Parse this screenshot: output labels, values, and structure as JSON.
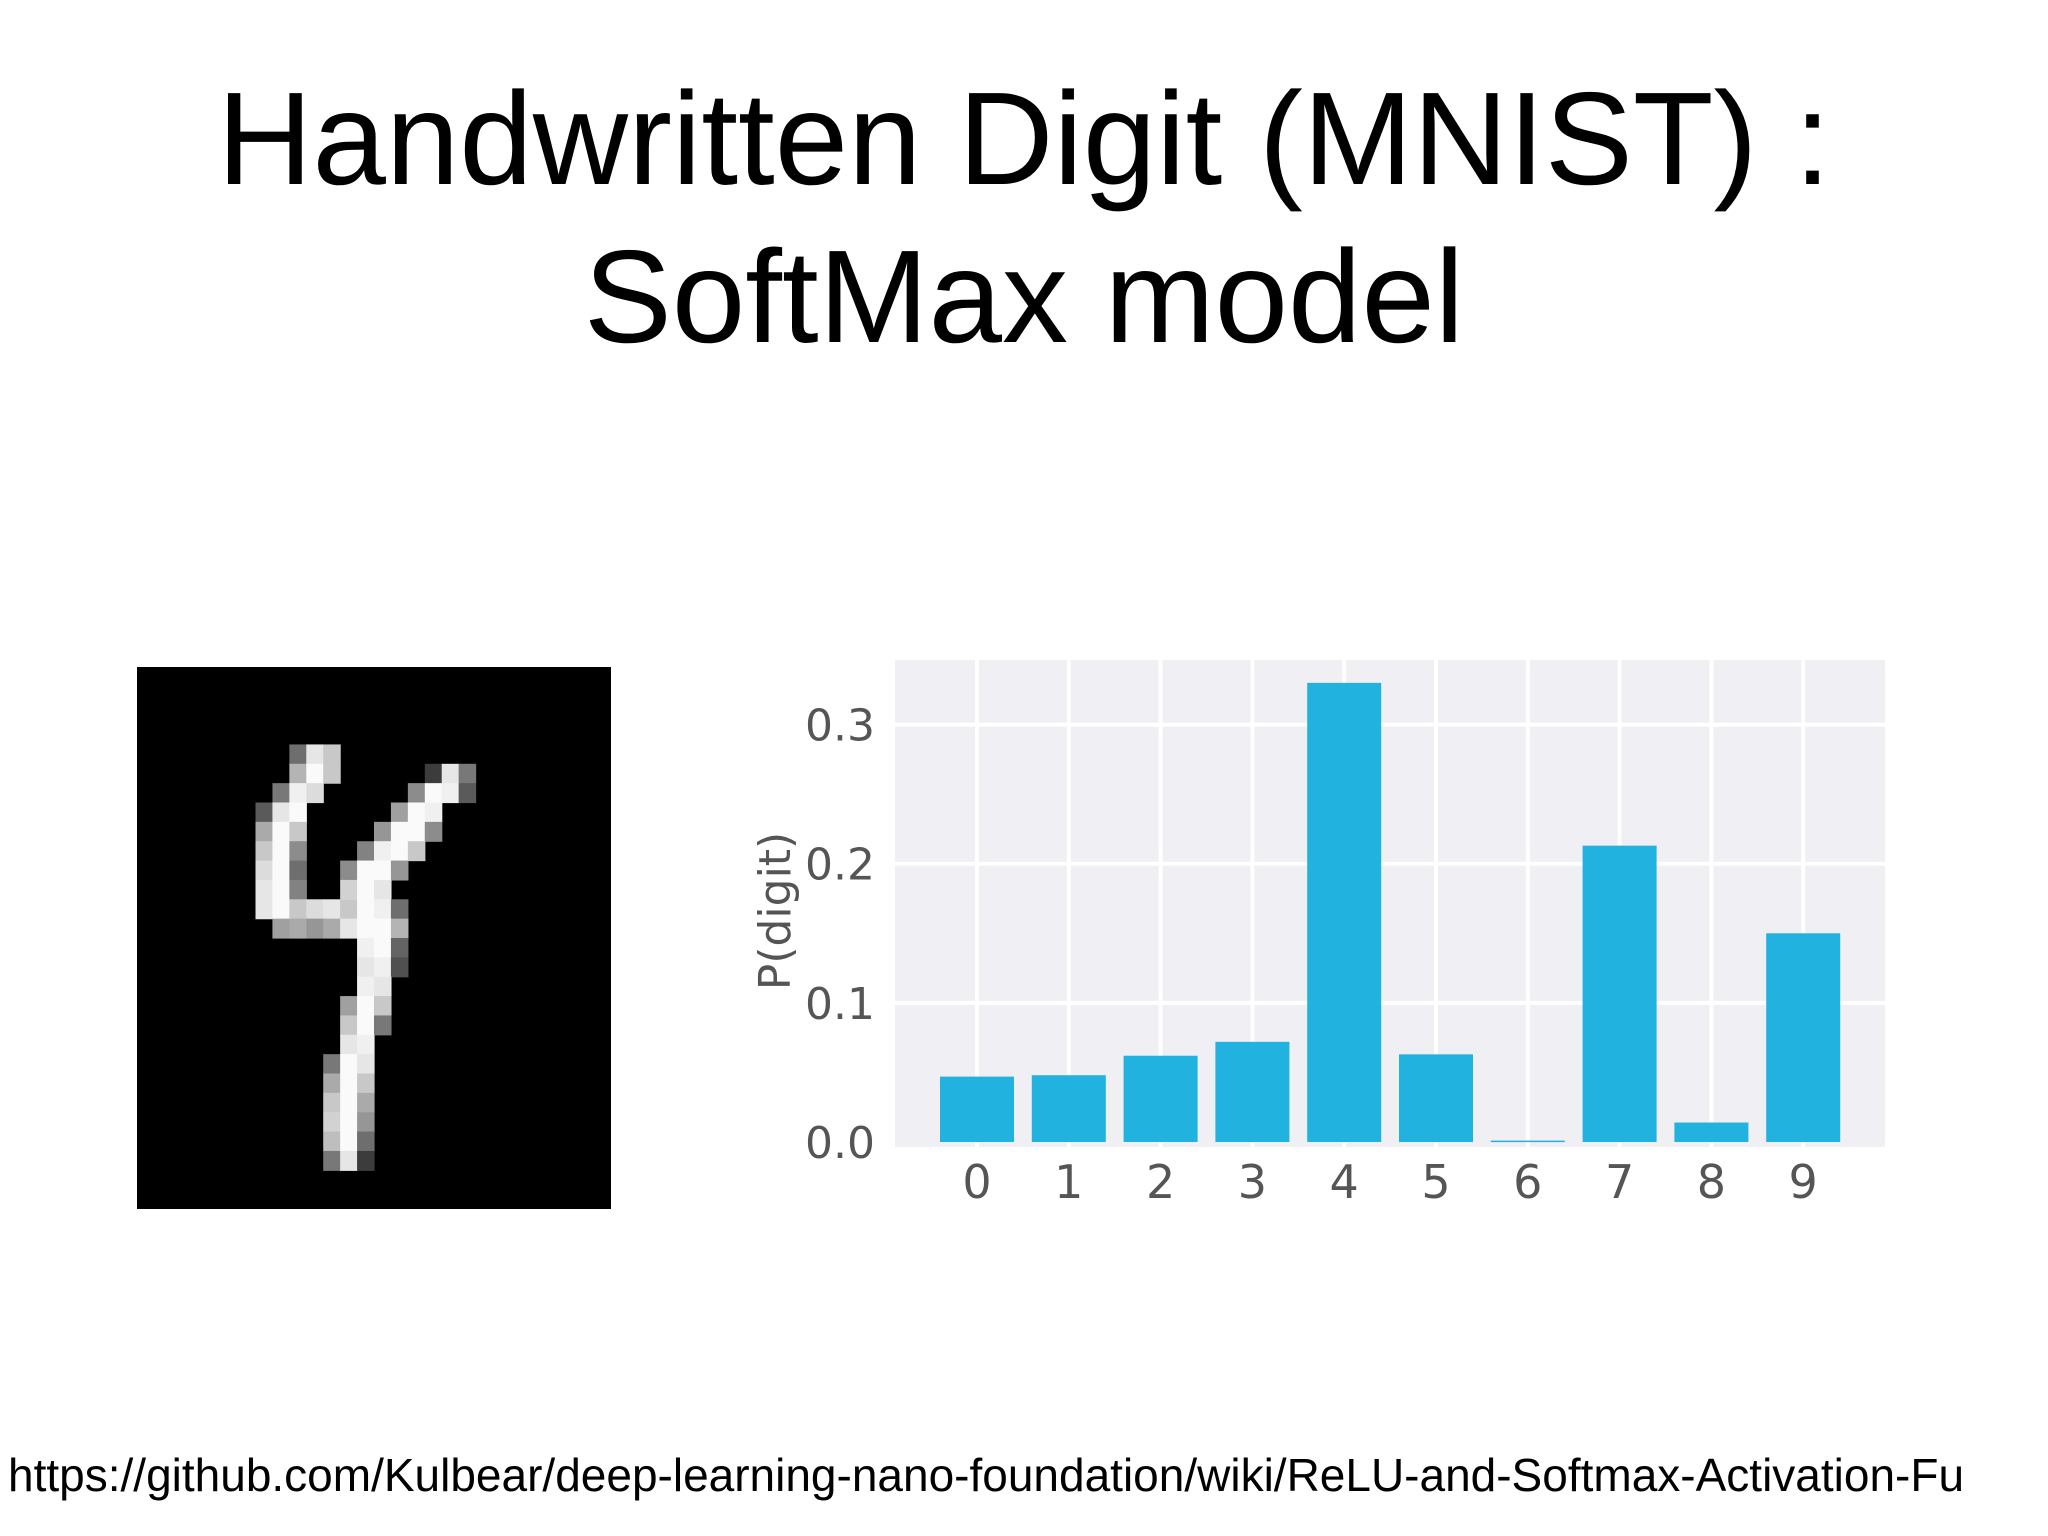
{
  "slide": {
    "title_line1": "Handwritten Digit (MNIST) :",
    "title_line2": "SoftMax model",
    "source_url": "https://github.com/Kulbear/deep-learning-nano-foundation/wiki/ReLU-and-Softmax-Activation-Fu"
  },
  "digit_image": {
    "depicted_digit": "4",
    "background_color": "#000000",
    "stroke_color": "#ffffff"
  },
  "colors": {
    "bar": "#22b2e0",
    "plot_background": "#efeff4",
    "grid": "#ffffff",
    "tick_text": "#555555"
  },
  "chart_data": {
    "type": "bar",
    "title": "",
    "xlabel": "",
    "ylabel": "P(digit)",
    "categories": [
      "0",
      "1",
      "2",
      "3",
      "4",
      "5",
      "6",
      "7",
      "8",
      "9"
    ],
    "values": [
      0.047,
      0.048,
      0.062,
      0.072,
      0.33,
      0.063,
      0.001,
      0.213,
      0.014,
      0.15
    ],
    "ylim": [
      0,
      0.345
    ],
    "yticks": [
      "0.0",
      "0.1",
      "0.2",
      "0.3"
    ],
    "grid": true
  }
}
